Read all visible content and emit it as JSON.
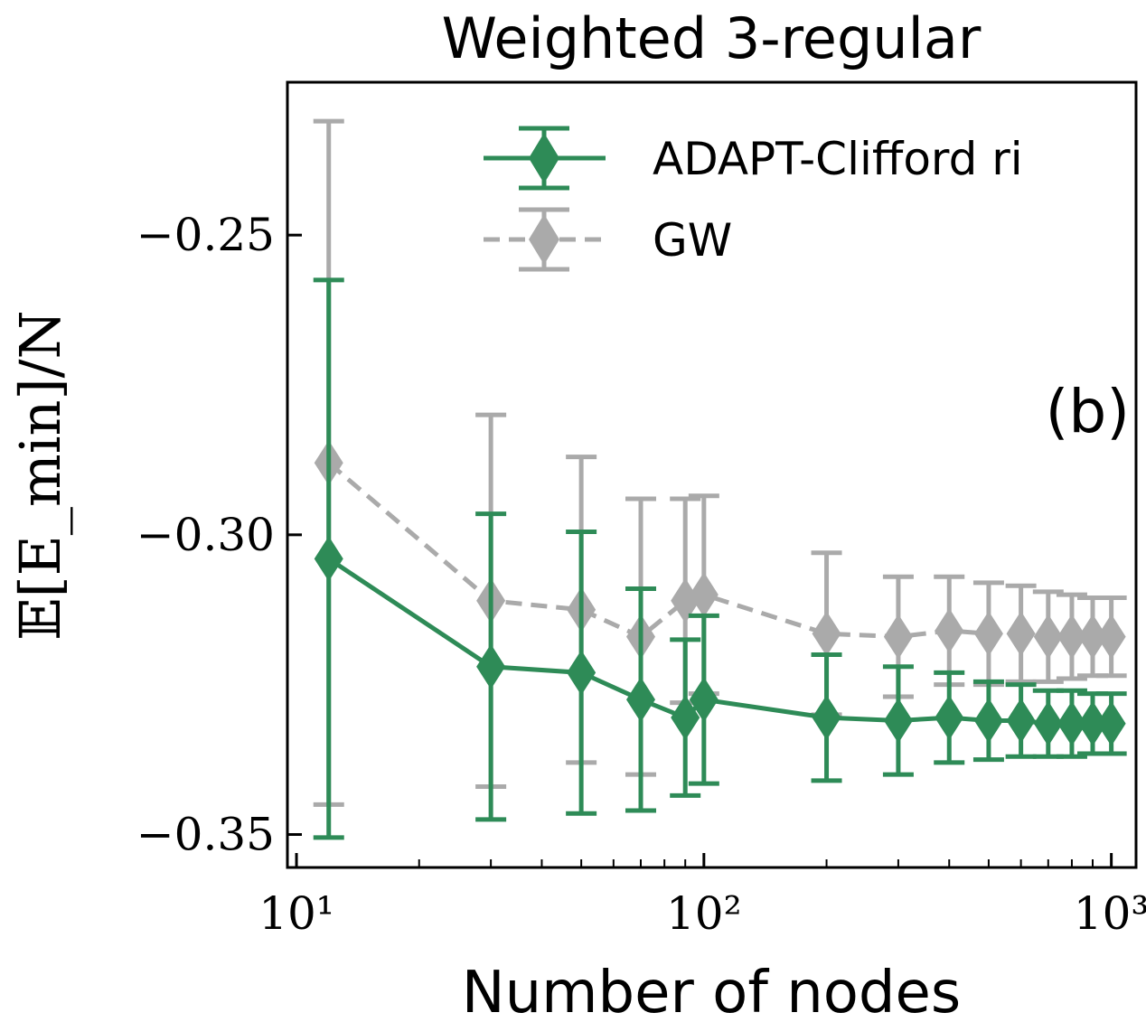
{
  "chart_data": {
    "type": "line",
    "title": "Weighted 3-regular",
    "xlabel": "Number of nodes",
    "ylabel": "𝔼[E_min]/N",
    "xscale": "log",
    "xlim": [
      9.5,
      1150
    ],
    "ylim": [
      -0.3555,
      -0.2245
    ],
    "x_ticks": [
      {
        "value": 10,
        "label": "10¹"
      },
      {
        "value": 100,
        "label": "10²"
      },
      {
        "value": 1000,
        "label": "10³"
      }
    ],
    "y_ticks": [
      {
        "value": -0.25,
        "label": "−0.25"
      },
      {
        "value": -0.3,
        "label": "−0.30"
      },
      {
        "value": -0.35,
        "label": "−0.35"
      }
    ],
    "annotation": "(b)",
    "legend_position": "top-right",
    "series": [
      {
        "name": "ADAPT-Clifford ri",
        "color": "#2e8b57",
        "style": "solid",
        "marker": "diamond",
        "x": [
          12,
          30,
          50,
          70,
          90,
          100,
          200,
          300,
          400,
          500,
          600,
          700,
          800,
          900,
          1000
        ],
        "y": [
          -0.304,
          -0.322,
          -0.323,
          -0.3275,
          -0.3305,
          -0.3275,
          -0.3305,
          -0.331,
          -0.3305,
          -0.331,
          -0.331,
          -0.3315,
          -0.3315,
          -0.3315,
          -0.3315
        ],
        "yerr": [
          0.0465,
          0.0255,
          0.0235,
          0.0185,
          0.013,
          0.014,
          0.0105,
          0.009,
          0.0075,
          0.0065,
          0.006,
          0.0055,
          0.0055,
          0.005,
          0.005
        ]
      },
      {
        "name": "GW",
        "color": "#aaaaaa",
        "style": "dashed",
        "marker": "diamond",
        "x": [
          12,
          30,
          50,
          70,
          90,
          100,
          200,
          300,
          400,
          500,
          600,
          700,
          800,
          900,
          1000
        ],
        "y": [
          -0.288,
          -0.311,
          -0.3125,
          -0.317,
          -0.311,
          -0.31,
          -0.3165,
          -0.317,
          -0.316,
          -0.3165,
          -0.3165,
          -0.317,
          -0.317,
          -0.317,
          -0.317
        ],
        "yerr": [
          0.057,
          0.031,
          0.0255,
          0.023,
          0.017,
          0.0165,
          0.0135,
          0.01,
          0.009,
          0.0085,
          0.008,
          0.0075,
          0.007,
          0.0065,
          0.0065
        ]
      }
    ]
  }
}
